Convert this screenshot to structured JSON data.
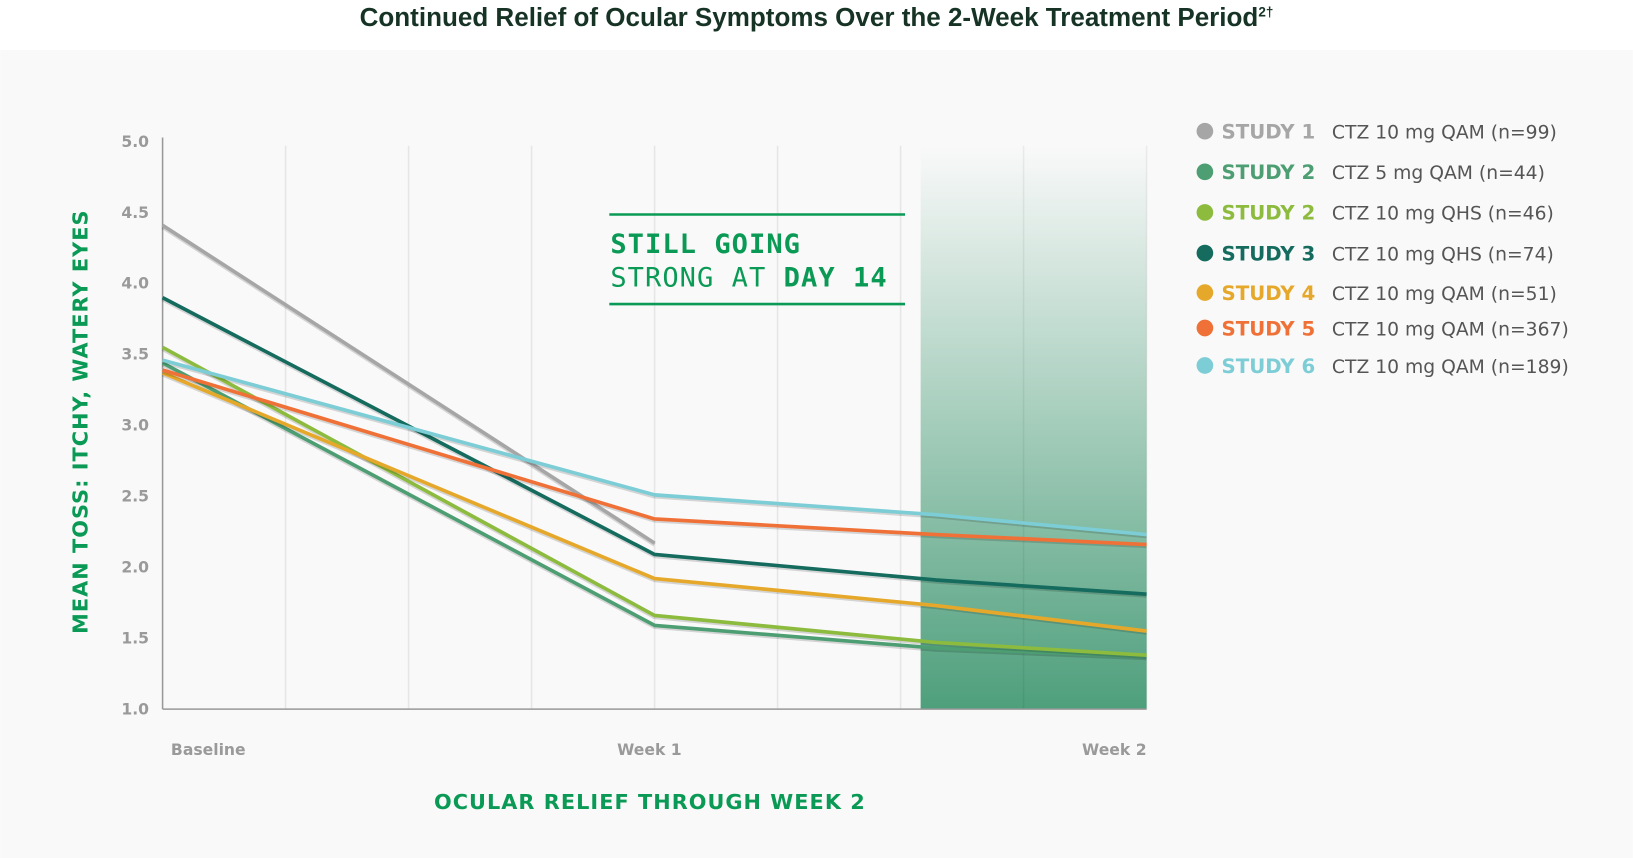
{
  "title": "Continued Relief of Ocular Symptoms Over the 2-Week Treatment Period",
  "title_superscript": "2†",
  "callout": {
    "line1": "STILL GOING",
    "line2_prefix": "STRONG AT ",
    "line2_emphasis": "DAY 14"
  },
  "colors": {
    "title": "#163325",
    "accent": "#0a9a55",
    "shade": "#4e9f7c"
  },
  "chart_data": {
    "type": "line",
    "title": "Continued Relief of Ocular Symptoms Over the 2-Week Treatment Period",
    "xlabel": "OCULAR RELIEF THROUGH WEEK 2",
    "ylabel": "MEAN TOSS: ITCHY, WATERY EYES",
    "ylim": [
      1.0,
      5.0
    ],
    "xlim_days": [
      0,
      14
    ],
    "yticks": [
      "1.0",
      "1.5",
      "2.0",
      "2.5",
      "3.0",
      "3.5",
      "4.0",
      "4.5",
      "5.0"
    ],
    "xticks": [
      {
        "label": "Baseline",
        "day": 0
      },
      {
        "label": "Week 1",
        "day": 7
      },
      {
        "label": "Week 2",
        "day": 14
      }
    ],
    "grid": true,
    "shaded_region_days": [
      11,
      14
    ],
    "legend_position": "right",
    "series": [
      {
        "study": "STUDY 1",
        "desc": "CTZ 10 mg QAM (n=99)",
        "color": "#a6a6a6",
        "x": [
          0,
          7
        ],
        "values": [
          4.41,
          2.17
        ]
      },
      {
        "study": "STUDY 2",
        "desc": "CTZ 5 mg QAM (n=44)",
        "color": "#4d9e73",
        "x": [
          0,
          7,
          11,
          14
        ],
        "values": [
          3.44,
          1.59,
          1.43,
          1.37
        ]
      },
      {
        "study": "STUDY 2",
        "desc": "CTZ 10 mg QHS (n=46)",
        "color": "#8cbb3e",
        "x": [
          0,
          7,
          11,
          14
        ],
        "values": [
          3.55,
          1.66,
          1.47,
          1.38
        ]
      },
      {
        "study": "STUDY 3",
        "desc": "CTZ 10 mg QHS (n=74)",
        "color": "#146b5e",
        "x": [
          0,
          7,
          11,
          14
        ],
        "values": [
          3.9,
          2.09,
          1.91,
          1.81
        ]
      },
      {
        "study": "STUDY 4",
        "desc": "CTZ 10 mg QAM (n=51)",
        "color": "#e6a82a",
        "x": [
          0,
          7,
          11,
          14
        ],
        "values": [
          3.37,
          1.92,
          1.73,
          1.55
        ]
      },
      {
        "study": "STUDY 5",
        "desc": "CTZ 10 mg QAM (n=367)",
        "color": "#ef7137",
        "x": [
          0,
          7,
          11,
          14
        ],
        "values": [
          3.39,
          2.34,
          2.23,
          2.16
        ]
      },
      {
        "study": "STUDY 6",
        "desc": "CTZ 10 mg QAM (n=189)",
        "color": "#7ccdd5",
        "x": [
          0,
          7,
          11,
          14
        ],
        "values": [
          3.46,
          2.51,
          2.37,
          2.23
        ]
      }
    ]
  }
}
